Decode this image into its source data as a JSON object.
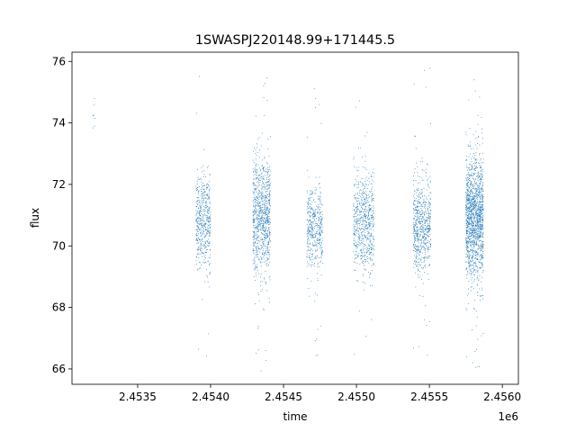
{
  "chart_data": {
    "type": "scatter",
    "title": "1SWASPJ220148.99+171445.5",
    "xlabel": "time",
    "ylabel": "flux",
    "x_offset_label": "1e6",
    "xlim": [
      2.45305,
      2.45611
    ],
    "ylim": [
      65.5,
      76.3
    ],
    "xticks": [
      2.4535,
      2.454,
      2.4545,
      2.455,
      2.4555,
      2.456
    ],
    "xtick_labels": [
      "2.4535",
      "2.4540",
      "2.4545",
      "2.4550",
      "2.4555",
      "2.4560"
    ],
    "yticks": [
      66,
      68,
      70,
      72,
      74,
      76
    ],
    "ytick_labels": [
      "66",
      "68",
      "70",
      "72",
      "74",
      "76"
    ],
    "grid": false,
    "point_color": "#1f77b4",
    "series": [
      {
        "clusters": [
          {
            "x_range": [
              2.45319,
              2.45321
            ],
            "y_center": 74.1,
            "y_spread": 0.5,
            "y_min": 72.4,
            "y_max": 75.2,
            "density": 8
          },
          {
            "x_range": [
              2.4539,
              2.454
            ],
            "y_center": 70.8,
            "y_spread": 0.75,
            "y_min": 66.3,
            "y_max": 75.8,
            "density": 500
          },
          {
            "x_range": [
              2.45429,
              2.45441
            ],
            "y_center": 70.9,
            "y_spread": 0.95,
            "y_min": 65.9,
            "y_max": 75.7,
            "density": 900
          },
          {
            "x_range": [
              2.45466,
              2.45477
            ],
            "y_center": 70.6,
            "y_spread": 0.65,
            "y_min": 66.3,
            "y_max": 75.4,
            "density": 450
          },
          {
            "x_range": [
              2.45498,
              2.45512
            ],
            "y_center": 70.7,
            "y_spread": 0.75,
            "y_min": 66.0,
            "y_max": 75.3,
            "density": 650
          },
          {
            "x_range": [
              2.45539,
              2.45551
            ],
            "y_center": 70.7,
            "y_spread": 0.75,
            "y_min": 66.0,
            "y_max": 75.8,
            "density": 650
          },
          {
            "x_range": [
              2.45575,
              2.45587
            ],
            "y_center": 70.9,
            "y_spread": 0.95,
            "y_min": 65.9,
            "y_max": 75.7,
            "density": 1500
          }
        ]
      }
    ]
  }
}
